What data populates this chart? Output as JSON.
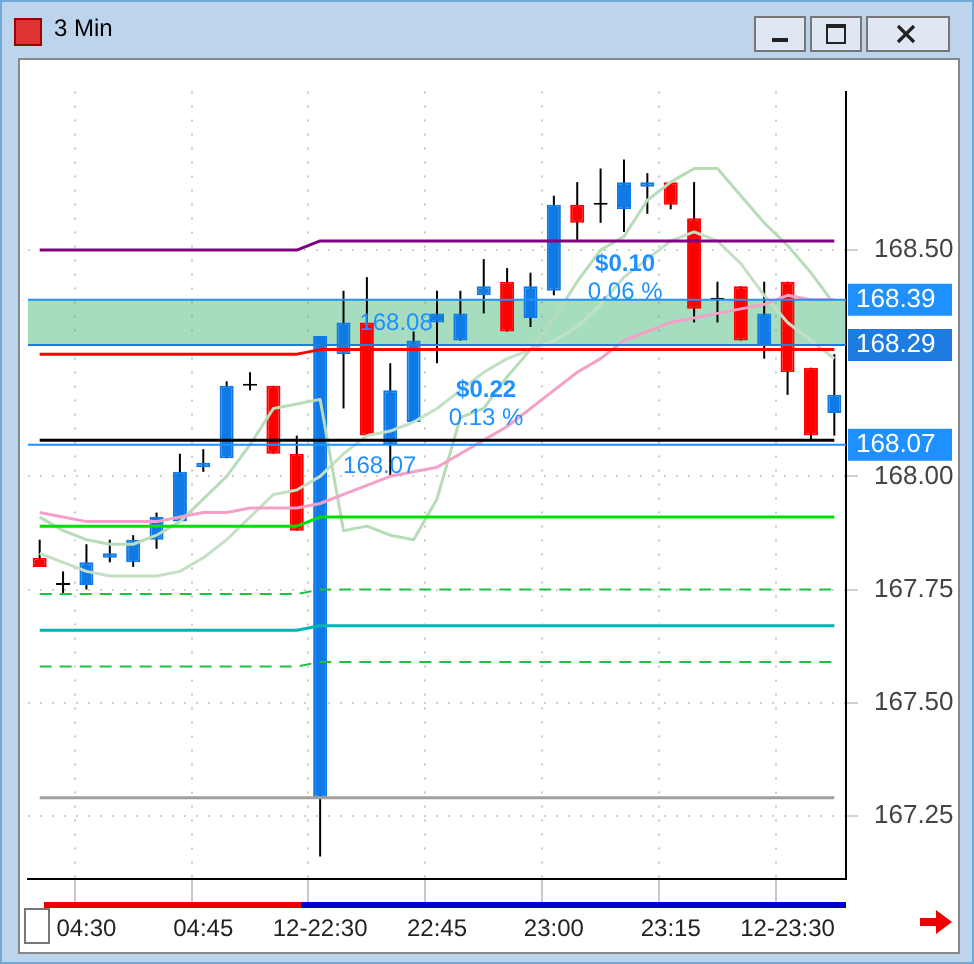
{
  "chart_data": {
    "type": "candlestick",
    "title": "3 Min",
    "categories": [
      null,
      null,
      "04:30",
      null,
      null,
      null,
      null,
      "04:45",
      null,
      null,
      null,
      null,
      "12-22:30",
      null,
      null,
      null,
      null,
      "22:45",
      null,
      null,
      null,
      null,
      "23:00",
      null,
      null,
      null,
      null,
      "23:15",
      null,
      null,
      null,
      null,
      "12-23:30",
      null,
      null
    ],
    "ohlc": [
      [
        167.82,
        167.86,
        167.8,
        167.8
      ],
      [
        167.76,
        167.79,
        167.74,
        167.76
      ],
      [
        167.76,
        167.85,
        167.75,
        167.81
      ],
      [
        167.82,
        167.86,
        167.81,
        167.83
      ],
      [
        167.81,
        167.87,
        167.8,
        167.86
      ],
      [
        167.86,
        167.92,
        167.84,
        167.91
      ],
      [
        167.9,
        168.05,
        167.9,
        168.01
      ],
      [
        168.02,
        168.06,
        168.01,
        168.03
      ],
      [
        168.04,
        168.21,
        168.04,
        168.2
      ],
      [
        168.2,
        168.23,
        168.19,
        168.2
      ],
      [
        168.2,
        168.2,
        168.05,
        168.05
      ],
      [
        168.05,
        168.09,
        167.88,
        167.88
      ],
      [
        167.29,
        168.31,
        167.16,
        168.31
      ],
      [
        168.27,
        168.41,
        168.15,
        168.34
      ],
      [
        168.34,
        168.44,
        168.09,
        168.09
      ],
      [
        168.07,
        168.25,
        168.0,
        168.19
      ],
      [
        168.12,
        168.32,
        168.12,
        168.3
      ],
      [
        168.34,
        168.41,
        168.25,
        168.36
      ],
      [
        168.3,
        168.41,
        168.3,
        168.36
      ],
      [
        168.4,
        168.48,
        168.36,
        168.42
      ],
      [
        168.43,
        168.46,
        168.32,
        168.32
      ],
      [
        168.35,
        168.45,
        168.33,
        168.42
      ],
      [
        168.41,
        168.62,
        168.4,
        168.6
      ],
      [
        168.6,
        168.65,
        168.52,
        168.56
      ],
      [
        168.6,
        168.68,
        168.56,
        168.6
      ],
      [
        168.59,
        168.7,
        168.54,
        168.65
      ],
      [
        168.64,
        168.67,
        168.58,
        168.65
      ],
      [
        168.65,
        168.65,
        168.59,
        168.6
      ],
      [
        168.57,
        168.65,
        168.34,
        168.37
      ],
      [
        168.39,
        168.43,
        168.34,
        168.39
      ],
      [
        168.42,
        168.42,
        168.3,
        168.3
      ],
      [
        168.29,
        168.43,
        168.26,
        168.36
      ],
      [
        168.43,
        168.43,
        168.18,
        168.23
      ],
      [
        168.24,
        168.24,
        168.08,
        168.09
      ],
      [
        168.14,
        168.27,
        168.09,
        168.18
      ]
    ],
    "colors": [
      "#ff0000",
      "#000000",
      "#0f7ae5",
      "#0f7ae5",
      "#0f7ae5",
      "#0f7ae5",
      "#0f7ae5",
      "#0f7ae5",
      "#0f7ae5",
      "#000000",
      "#ff0000",
      "#ff0000",
      "#0f7ae5",
      "#0f7ae5",
      "#ff0000",
      "#0f7ae5",
      "#0f7ae5",
      "#0f7ae5",
      "#0f7ae5",
      "#0f7ae5",
      "#ff0000",
      "#0f7ae5",
      "#0f7ae5",
      "#ff0000",
      "#000000",
      "#0f7ae5",
      "#0f7ae5",
      "#ff0000",
      "#ff0000",
      "#000000",
      "#ff0000",
      "#0f7ae5",
      "#ff0000",
      "#ff0000",
      "#0f7ae5"
    ],
    "series": [
      {
        "type": "line",
        "color": "#800080",
        "values": [
          168.5,
          168.5,
          168.5,
          168.5,
          168.5,
          168.5,
          168.5,
          168.5,
          168.5,
          168.5,
          168.5,
          168.5,
          168.52,
          168.52,
          168.52,
          168.52,
          168.52,
          168.52,
          168.52,
          168.52,
          168.52,
          168.52,
          168.52,
          168.52,
          168.52,
          168.52,
          168.52,
          168.52,
          168.52,
          168.52,
          168.52,
          168.52,
          168.52,
          168.52,
          168.52
        ]
      },
      {
        "type": "line",
        "color": "#ff0000",
        "values": [
          168.27,
          168.27,
          168.27,
          168.27,
          168.27,
          168.27,
          168.27,
          168.27,
          168.27,
          168.27,
          168.27,
          168.27,
          168.28,
          168.28,
          168.28,
          168.28,
          168.28,
          168.28,
          168.28,
          168.28,
          168.28,
          168.28,
          168.28,
          168.28,
          168.28,
          168.28,
          168.28,
          168.28,
          168.28,
          168.28,
          168.28,
          168.28,
          168.28,
          168.28,
          168.28
        ]
      },
      {
        "type": "line",
        "color": "#000000",
        "values": [
          168.08,
          168.08,
          168.08,
          168.08,
          168.08,
          168.08,
          168.08,
          168.08,
          168.08,
          168.08,
          168.08,
          168.08,
          168.08,
          168.08,
          168.08,
          168.08,
          168.08,
          168.08,
          168.08,
          168.08,
          168.08,
          168.08,
          168.08,
          168.08,
          168.08,
          168.08,
          168.08,
          168.08,
          168.08,
          168.08,
          168.08,
          168.08,
          168.08,
          168.08,
          168.08
        ]
      },
      {
        "type": "line",
        "color": "#00e000",
        "values": [
          167.89,
          167.89,
          167.89,
          167.89,
          167.89,
          167.89,
          167.89,
          167.89,
          167.89,
          167.89,
          167.89,
          167.89,
          167.91,
          167.91,
          167.91,
          167.91,
          167.91,
          167.91,
          167.91,
          167.91,
          167.91,
          167.91,
          167.91,
          167.91,
          167.91,
          167.91,
          167.91,
          167.91,
          167.91,
          167.91,
          167.91,
          167.91,
          167.91,
          167.91,
          167.91
        ]
      },
      {
        "type": "line",
        "color": "#20c040",
        "line_style": "dashed",
        "values": [
          167.74,
          167.74,
          167.74,
          167.74,
          167.74,
          167.74,
          167.74,
          167.74,
          167.74,
          167.74,
          167.74,
          167.74,
          167.75,
          167.75,
          167.75,
          167.75,
          167.75,
          167.75,
          167.75,
          167.75,
          167.75,
          167.75,
          167.75,
          167.75,
          167.75,
          167.75,
          167.75,
          167.75,
          167.75,
          167.75,
          167.75,
          167.75,
          167.75,
          167.75,
          167.75
        ]
      },
      {
        "type": "line",
        "color": "#00b4b4",
        "values": [
          167.66,
          167.66,
          167.66,
          167.66,
          167.66,
          167.66,
          167.66,
          167.66,
          167.66,
          167.66,
          167.66,
          167.66,
          167.67,
          167.67,
          167.67,
          167.67,
          167.67,
          167.67,
          167.67,
          167.67,
          167.67,
          167.67,
          167.67,
          167.67,
          167.67,
          167.67,
          167.67,
          167.67,
          167.67,
          167.67,
          167.67,
          167.67,
          167.67,
          167.67,
          167.67
        ]
      },
      {
        "type": "line",
        "color": "#20c040",
        "line_style": "dashed",
        "values": [
          167.58,
          167.58,
          167.58,
          167.58,
          167.58,
          167.58,
          167.58,
          167.58,
          167.58,
          167.58,
          167.58,
          167.58,
          167.59,
          167.59,
          167.59,
          167.59,
          167.59,
          167.59,
          167.59,
          167.59,
          167.59,
          167.59,
          167.59,
          167.59,
          167.59,
          167.59,
          167.59,
          167.59,
          167.59,
          167.59,
          167.59,
          167.59,
          167.59,
          167.59,
          167.59
        ]
      },
      {
        "type": "line",
        "color": "#a0a0a0",
        "values": [
          167.29,
          167.29,
          167.29,
          167.29,
          167.29,
          167.29,
          167.29,
          167.29,
          167.29,
          167.29,
          167.29,
          167.29,
          167.29,
          167.29,
          167.29,
          167.29,
          167.29,
          167.29,
          167.29,
          167.29,
          167.29,
          167.29,
          167.29,
          167.29,
          167.29,
          167.29,
          167.29,
          167.29,
          167.29,
          167.29,
          167.29,
          167.29,
          167.29,
          167.29,
          167.29
        ]
      },
      {
        "type": "line",
        "color": "#f4a0c8",
        "values": [
          167.92,
          167.91,
          167.9,
          167.9,
          167.9,
          167.9,
          167.91,
          167.92,
          167.92,
          167.93,
          167.93,
          167.93,
          167.94,
          167.96,
          167.98,
          168.0,
          168.01,
          168.02,
          168.05,
          168.08,
          168.11,
          168.15,
          168.19,
          168.23,
          168.26,
          168.3,
          168.32,
          168.34,
          168.35,
          168.36,
          168.37,
          168.38,
          168.4,
          168.39,
          168.39
        ]
      },
      {
        "type": "line",
        "color": "#b8dcb8",
        "values": [
          167.91,
          167.88,
          167.86,
          167.85,
          167.85,
          167.87,
          167.9,
          167.95,
          168.0,
          168.07,
          168.15,
          168.16,
          168.17,
          167.88,
          167.89,
          167.87,
          167.86,
          167.95,
          168.13,
          168.15,
          168.22,
          168.28,
          168.35,
          168.43,
          168.5,
          168.53,
          168.61,
          168.65,
          168.68,
          168.68,
          168.62,
          168.56,
          168.51,
          168.45,
          168.38
        ]
      },
      {
        "type": "line",
        "color": "#c4e0c4",
        "values": [
          167.83,
          167.81,
          167.79,
          167.78,
          167.78,
          167.78,
          167.79,
          167.82,
          167.86,
          167.91,
          167.96,
          167.97,
          168.0,
          168.05,
          168.09,
          168.1,
          168.12,
          168.15,
          168.19,
          168.23,
          168.26,
          168.28,
          168.3,
          168.33,
          168.38,
          168.44,
          168.48,
          168.52,
          168.54,
          168.52,
          168.47,
          168.4,
          168.34,
          168.3,
          168.26
        ]
      }
    ],
    "ylim": [
      167.11,
      168.85
    ],
    "yticks": [
      167.25,
      {
        "value": 167.5,
        "label": "167.50"
      },
      167.75,
      {
        "value": 168,
        "label": "168.00"
      },
      {
        "value": 168.5,
        "label": "168.50"
      }
    ],
    "grid": true,
    "legend": false,
    "ref_lines": [
      {
        "axis": "y",
        "value": 168.29,
        "label": "168.29",
        "color": "#1e7be0"
      },
      {
        "axis": "y",
        "value": 168.39,
        "label": "168.39",
        "color": "#1e90ff"
      },
      {
        "axis": "y",
        "value": 168.07,
        "label": "168.07",
        "color": "#1e90ff"
      }
    ],
    "bands": [
      {
        "axis": "y",
        "from": 168.29,
        "to": 168.39,
        "color": "#3cb371"
      }
    ],
    "annotations": [
      "$0.10",
      "0.06 %",
      "168.08",
      "$0.22",
      "0.13 %",
      {
        "text": "168.07",
        "y": 168.07
      }
    ]
  }
}
